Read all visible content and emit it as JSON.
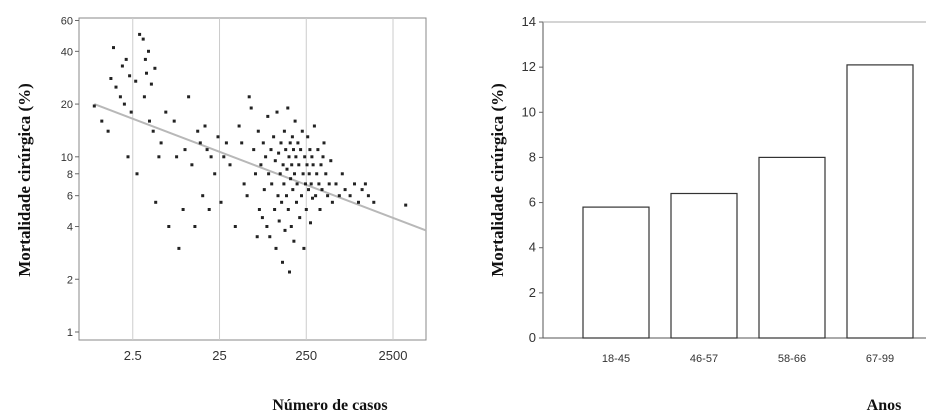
{
  "chart_data": [
    {
      "type": "scatter",
      "title": "",
      "xlabel": "Número de casos",
      "ylabel": "Mortalidade cirúrgica (%)",
      "x_scale": "log",
      "y_scale": "log",
      "xlim": [
        0.6,
        6000
      ],
      "ylim": [
        0.9,
        62
      ],
      "x_ticks": [
        2.5,
        25,
        250,
        2500
      ],
      "x_tick_labels": [
        "2.5",
        "25",
        "250",
        "2500"
      ],
      "y_ticks": [
        1,
        2,
        4,
        6,
        8,
        10,
        20,
        40,
        60
      ],
      "y_tick_labels": [
        "1",
        "2",
        "4",
        "6",
        "8",
        "10",
        "20",
        "40",
        "60"
      ],
      "grid": "vertical",
      "colors": {
        "points": "#222222",
        "trend": "#b8b8b8",
        "grid": "#cccccc"
      },
      "trend_line": {
        "x": [
          0.9,
          6000
        ],
        "y": [
          20,
          3.8
        ]
      },
      "points": [
        [
          0.9,
          19.5
        ],
        [
          1.1,
          16
        ],
        [
          1.3,
          14
        ],
        [
          1.5,
          42
        ],
        [
          1.4,
          28
        ],
        [
          1.6,
          25
        ],
        [
          1.8,
          22
        ],
        [
          1.9,
          33
        ],
        [
          2.1,
          36
        ],
        [
          2.0,
          20
        ],
        [
          2.2,
          10
        ],
        [
          2.4,
          18
        ],
        [
          2.3,
          29
        ],
        [
          2.7,
          27
        ],
        [
          2.8,
          8
        ],
        [
          3.0,
          50
        ],
        [
          3.3,
          47
        ],
        [
          3.5,
          36
        ],
        [
          3.6,
          30
        ],
        [
          3.8,
          40
        ],
        [
          3.4,
          22
        ],
        [
          3.9,
          16
        ],
        [
          4.3,
          14
        ],
        [
          4.5,
          32
        ],
        [
          4.1,
          26
        ],
        [
          4.6,
          5.5
        ],
        [
          5.0,
          10
        ],
        [
          5.3,
          12
        ],
        [
          6.0,
          18
        ],
        [
          6.5,
          4
        ],
        [
          7.5,
          16
        ],
        [
          8.0,
          10
        ],
        [
          8.5,
          3
        ],
        [
          9.5,
          5
        ],
        [
          10,
          11
        ],
        [
          11,
          22
        ],
        [
          12,
          9
        ],
        [
          13,
          4
        ],
        [
          14,
          14
        ],
        [
          15,
          12
        ],
        [
          16,
          6
        ],
        [
          17,
          15
        ],
        [
          18,
          11
        ],
        [
          19,
          5
        ],
        [
          20,
          10
        ],
        [
          22,
          8
        ],
        [
          24,
          13
        ],
        [
          26,
          5.5
        ],
        [
          28,
          10
        ],
        [
          30,
          12
        ],
        [
          33,
          9
        ],
        [
          38,
          4
        ],
        [
          42,
          15
        ],
        [
          45,
          12
        ],
        [
          48,
          7
        ],
        [
          52,
          6
        ],
        [
          55,
          22
        ],
        [
          58,
          19
        ],
        [
          62,
          11
        ],
        [
          65,
          8
        ],
        [
          68,
          3.5
        ],
        [
          70,
          14
        ],
        [
          72,
          5
        ],
        [
          75,
          9
        ],
        [
          78,
          4.5
        ],
        [
          80,
          12
        ],
        [
          82,
          6.5
        ],
        [
          85,
          10
        ],
        [
          88,
          4
        ],
        [
          90,
          17
        ],
        [
          92,
          8
        ],
        [
          95,
          3.5
        ],
        [
          98,
          11
        ],
        [
          100,
          7
        ],
        [
          105,
          13
        ],
        [
          108,
          5
        ],
        [
          110,
          9.5
        ],
        [
          112,
          3
        ],
        [
          115,
          18
        ],
        [
          118,
          6
        ],
        [
          120,
          10.5
        ],
        [
          122,
          4.3
        ],
        [
          125,
          8
        ],
        [
          128,
          12
        ],
        [
          130,
          5.5
        ],
        [
          133,
          2.5
        ],
        [
          135,
          9
        ],
        [
          138,
          7
        ],
        [
          140,
          14
        ],
        [
          142,
          3.8
        ],
        [
          145,
          11
        ],
        [
          148,
          6
        ],
        [
          150,
          8.5
        ],
        [
          153,
          19
        ],
        [
          155,
          5
        ],
        [
          158,
          10
        ],
        [
          160,
          2.2
        ],
        [
          163,
          12
        ],
        [
          165,
          7.5
        ],
        [
          168,
          4
        ],
        [
          170,
          9
        ],
        [
          173,
          13
        ],
        [
          175,
          6.5
        ],
        [
          178,
          11
        ],
        [
          180,
          3.3
        ],
        [
          183,
          8
        ],
        [
          186,
          16
        ],
        [
          190,
          10
        ],
        [
          193,
          5.5
        ],
        [
          196,
          7
        ],
        [
          200,
          12
        ],
        [
          205,
          9
        ],
        [
          210,
          4.5
        ],
        [
          215,
          11
        ],
        [
          220,
          6
        ],
        [
          225,
          14
        ],
        [
          230,
          8
        ],
        [
          235,
          3
        ],
        [
          240,
          10
        ],
        [
          245,
          7
        ],
        [
          250,
          5
        ],
        [
          255,
          9
        ],
        [
          260,
          13
        ],
        [
          265,
          6.5
        ],
        [
          270,
          8
        ],
        [
          275,
          11
        ],
        [
          280,
          4.2
        ],
        [
          285,
          7
        ],
        [
          290,
          10
        ],
        [
          295,
          5.8
        ],
        [
          300,
          9
        ],
        [
          310,
          15
        ],
        [
          320,
          6
        ],
        [
          330,
          8
        ],
        [
          340,
          11
        ],
        [
          350,
          7
        ],
        [
          360,
          5
        ],
        [
          370,
          9
        ],
        [
          380,
          6.5
        ],
        [
          390,
          10
        ],
        [
          400,
          12
        ],
        [
          420,
          8
        ],
        [
          440,
          6
        ],
        [
          460,
          7
        ],
        [
          480,
          9.5
        ],
        [
          500,
          5.5
        ],
        [
          550,
          7
        ],
        [
          600,
          6
        ],
        [
          650,
          8
        ],
        [
          700,
          6.5
        ],
        [
          800,
          6
        ],
        [
          900,
          7
        ],
        [
          1000,
          5.5
        ],
        [
          1100,
          6.5
        ],
        [
          1200,
          7
        ],
        [
          1300,
          6
        ],
        [
          1500,
          5.5
        ],
        [
          3500,
          5.3
        ]
      ]
    },
    {
      "type": "bar",
      "title": "",
      "xlabel": "Anos",
      "ylabel": "Mortalidade cirúrgica (%)",
      "categories": [
        "18-45",
        "46-57",
        "58-66",
        "67-99"
      ],
      "values": [
        5.8,
        6.4,
        8.0,
        12.1
      ],
      "ylim": [
        0,
        14
      ],
      "y_ticks": [
        0,
        2,
        4,
        6,
        8,
        10,
        12,
        14
      ],
      "grid": "none",
      "colors": {
        "bar_fill": "#ffffff",
        "bar_stroke": "#333333",
        "axes": "#555555"
      }
    }
  ]
}
